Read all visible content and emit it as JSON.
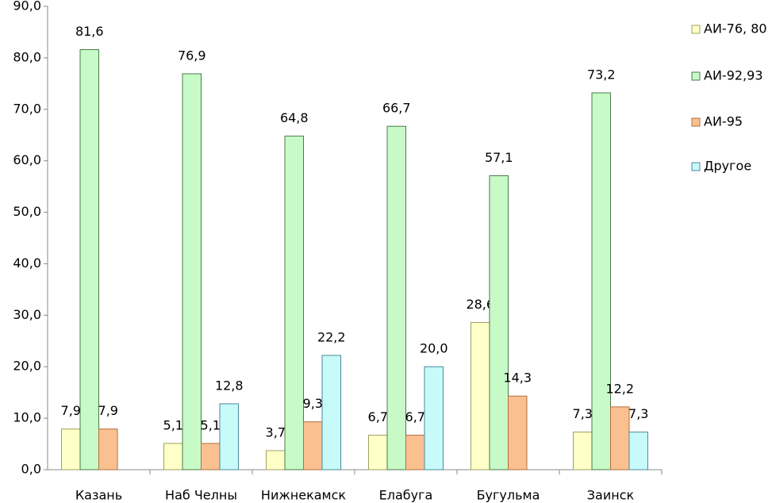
{
  "chart_data": {
    "type": "bar",
    "categories": [
      "Казань",
      "Наб Челны",
      "Нижнекамск",
      "Елабуга",
      "Бугульма",
      "Заинск"
    ],
    "series": [
      {
        "name": "АИ-76, 80",
        "color": "#ffffc8",
        "values": [
          7.9,
          5.1,
          3.7,
          6.7,
          28.6,
          7.3
        ],
        "value_labels": [
          "7,9",
          "5,1",
          "3,7",
          "6,7",
          "28,6",
          "7,3"
        ]
      },
      {
        "name": "АИ-92,93",
        "color": "#c8fac8",
        "values": [
          81.6,
          76.9,
          64.8,
          66.7,
          57.1,
          73.2
        ],
        "value_labels": [
          "81,6",
          "76,9",
          "64,8",
          "66,7",
          "57,1",
          "73,2"
        ]
      },
      {
        "name": "АИ-95",
        "color": "#fac090",
        "values": [
          7.9,
          5.1,
          9.3,
          6.7,
          14.3,
          12.2
        ],
        "value_labels": [
          "7,9",
          "5,1",
          "9,3",
          "6,7",
          "14,3",
          "12,2"
        ]
      },
      {
        "name": "Другое",
        "color": "#c8fafa",
        "values": [
          null,
          12.8,
          22.2,
          20.0,
          null,
          7.3
        ],
        "value_labels": [
          null,
          "12,8",
          "22,2",
          "20,0",
          null,
          "7,3"
        ]
      }
    ],
    "ylim": [
      0,
      90
    ],
    "yticks": [
      {
        "value": 0,
        "label": "0,0"
      },
      {
        "value": 10,
        "label": "10,0"
      },
      {
        "value": 20,
        "label": "20,0"
      },
      {
        "value": 30,
        "label": "30,0"
      },
      {
        "value": 40,
        "label": "40,0"
      },
      {
        "value": 50,
        "label": "50,0"
      },
      {
        "value": 60,
        "label": "60,0"
      },
      {
        "value": 70,
        "label": "70,0"
      },
      {
        "value": 80,
        "label": "80,0"
      },
      {
        "value": 90,
        "label": "90,0"
      }
    ],
    "grid": false,
    "legend": "right"
  }
}
